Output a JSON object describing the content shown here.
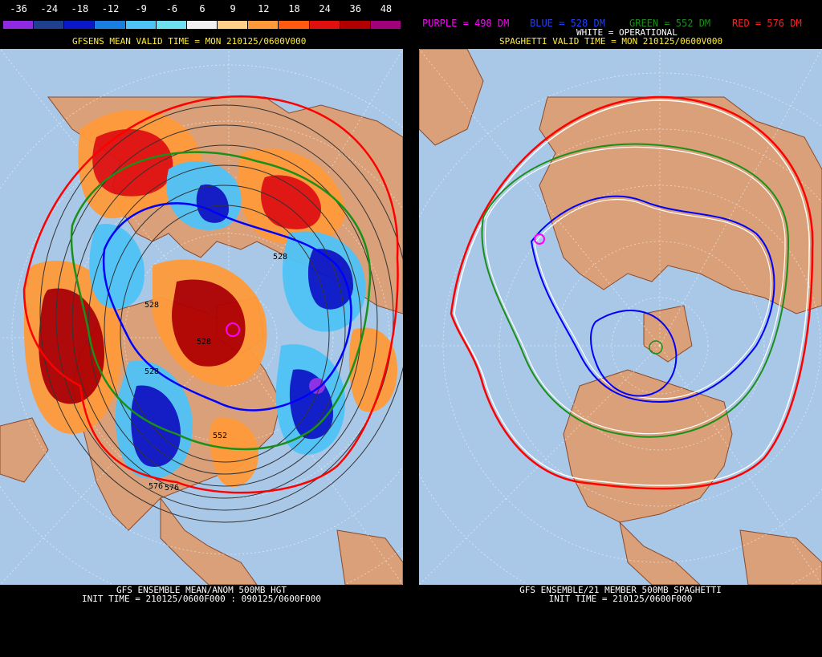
{
  "left_panel": {
    "legend": {
      "labels": [
        "-36",
        "-24",
        "-18",
        "-12",
        "-9",
        "-6",
        "6",
        "9",
        "12",
        "18",
        "24",
        "36",
        "48"
      ],
      "colors": [
        "#8e2be2",
        "#1f3f8f",
        "#0a18c8",
        "#1a7ee0",
        "#4fc3f7",
        "#6fe0f0",
        "#f0f0f0",
        "#ffd08a",
        "#ff9a3a",
        "#ff5a10",
        "#e01010",
        "#b00000",
        "#a0007a"
      ]
    },
    "subtitle": "GFSENS MEAN VALID TIME = MON 210125/0600V000",
    "contour_labels": [
      "528",
      "528",
      "528",
      "528",
      "576",
      "552",
      "576"
    ],
    "footer_line1": "GFS ENSEMBLE MEAN/ANOM 500MB HGT",
    "footer_line2": "INIT TIME = 210125/0600F000 : 090125/0600F000"
  },
  "right_panel": {
    "legend_purple": "PURPLE = 498 DM",
    "legend_blue": "BLUE = 528 DM",
    "legend_green": "GREEN = 552 DM",
    "legend_red": "RED = 576 DM",
    "legend_white": "WHITE = OPERATIONAL",
    "subtitle": "SPAGHETTI VALID TIME = MON 210125/0600V000",
    "footer_line1": "GFS ENSEMBLE/21 MEMBER 500MB SPAGHETTI",
    "footer_line2": "INIT TIME = 210125/0600F000"
  },
  "colors": {
    "ocean": "#a9c8e8",
    "land": "#d9a07a",
    "coast": "#8b4a2b",
    "purple": "#ff00ff",
    "blue": "#0000ff",
    "green": "#1a8f1a",
    "red": "#ff0000",
    "white": "#ffffff"
  }
}
